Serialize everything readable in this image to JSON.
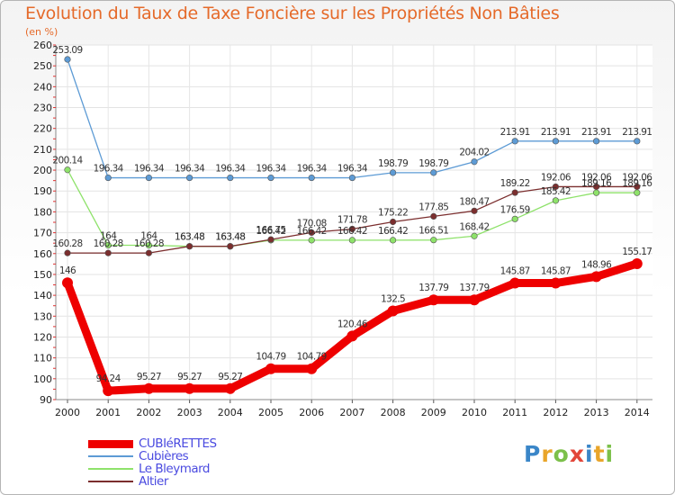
{
  "header": {
    "title": "Evolution du Taux de Taxe Foncière sur les Propriétés Non Bâties",
    "unit": "(en %)"
  },
  "logo": {
    "text": "Proxiti"
  },
  "chart_data": {
    "type": "line",
    "title": "Evolution du Taux de Taxe Foncière sur les Propriétés Non Bâties",
    "ylabel": "(en %)",
    "xlabel": "",
    "ylim": [
      90,
      260
    ],
    "yticks": [
      90,
      100,
      110,
      120,
      130,
      140,
      150,
      160,
      170,
      180,
      190,
      200,
      210,
      220,
      230,
      240,
      250,
      260
    ],
    "grid": true,
    "legend_position": "bottom-left",
    "categories": [
      "2000",
      "2001",
      "2002",
      "2003",
      "2004",
      "2005",
      "2006",
      "2007",
      "2008",
      "2009",
      "2010",
      "2011",
      "2012",
      "2013",
      "2014"
    ],
    "series": [
      {
        "name": "CUBIéRETTES",
        "color": "#ee0000",
        "values": [
          146,
          94.24,
          95.27,
          95.27,
          95.27,
          104.79,
          104.79,
          120.46,
          132.5,
          137.79,
          137.79,
          145.87,
          145.87,
          148.96,
          155.17
        ],
        "labels": [
          "146",
          "94.24",
          "95.27",
          "95.27",
          "95.27",
          "104.79",
          "104.79",
          "120.46",
          "132.5",
          "137.79",
          "137.79",
          "145.87",
          "145.87",
          "148.96",
          "155.17"
        ]
      },
      {
        "name": "Cubières",
        "color": "#5d9bd5",
        "values": [
          253.09,
          196.34,
          196.34,
          196.34,
          196.34,
          196.34,
          196.34,
          196.34,
          198.79,
          198.79,
          204.02,
          213.91,
          213.91,
          213.91,
          213.91
        ],
        "labels": [
          "253.09",
          "196.34",
          "196.34",
          "196.34",
          "196.34",
          "196.34",
          "196.34",
          "196.34",
          "198.79",
          "198.79",
          "204.02",
          "213.91",
          "213.91",
          "213.91",
          "213.91"
        ]
      },
      {
        "name": "Le Bleymard",
        "color": "#8ee26a",
        "values": [
          200.14,
          164,
          164,
          163.48,
          163.48,
          166.42,
          166.42,
          166.42,
          166.42,
          166.51,
          168.42,
          176.59,
          185.42,
          189.16,
          189.16
        ],
        "labels": [
          "200.14",
          "164",
          "164",
          "163.48",
          "163.48",
          "166.42",
          "166.42",
          "166.42",
          "166.42",
          "166.51",
          "168.42",
          "176.59",
          "185.42",
          "189.16",
          "189.16"
        ]
      },
      {
        "name": "Altier",
        "color": "#7b2e2e",
        "values": [
          160.28,
          160.28,
          160.28,
          163.48,
          163.48,
          166.75,
          170.08,
          171.78,
          175.22,
          177.85,
          180.47,
          189.22,
          192.06,
          192.06,
          192.06
        ],
        "labels": [
          "160.28",
          "160.28",
          "160.28",
          "163.48",
          "163.48",
          "166.75",
          "170.08",
          "171.78",
          "175.22",
          "177.85",
          "180.47",
          "189.22",
          "192.06",
          "192.06",
          "192.06"
        ]
      }
    ]
  }
}
